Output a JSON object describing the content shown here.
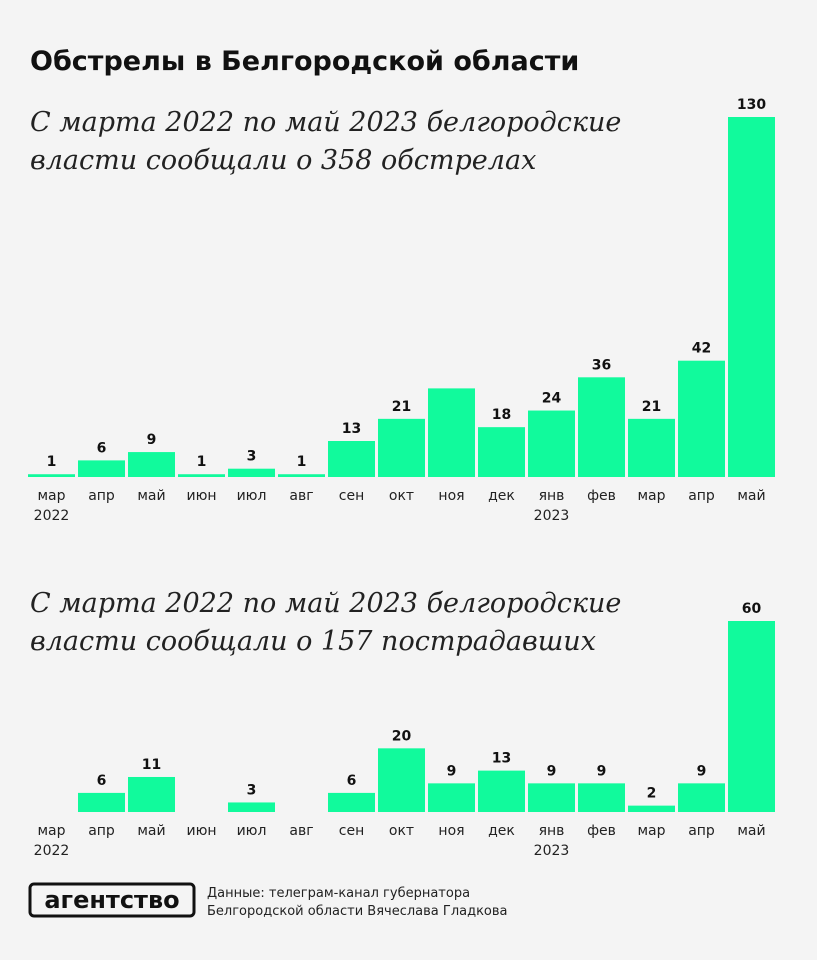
{
  "header": {
    "title": "Обстрелы в Белгородской области"
  },
  "chart_data": [
    {
      "type": "bar",
      "subtitle": [
        "С марта 2022 по май 2023 белгородские",
        "власти сообщали о 358 обстрелах"
      ],
      "categories": [
        "мар",
        "апр",
        "май",
        "июн",
        "июл",
        "авг",
        "сен",
        "окт",
        "ноя",
        "дек",
        "янв",
        "фев",
        "мар",
        "апр",
        "май"
      ],
      "category_years": [
        "2022",
        null,
        null,
        null,
        null,
        null,
        null,
        null,
        null,
        null,
        "2023",
        null,
        null,
        null,
        null
      ],
      "values": [
        1,
        6,
        9,
        1,
        3,
        1,
        13,
        21,
        32,
        18,
        24,
        36,
        21,
        42,
        130
      ],
      "value_labels": [
        "1",
        "6",
        "9",
        "1",
        "3",
        "1",
        "13",
        "21",
        null,
        "18",
        "24",
        "36",
        "21",
        "42",
        "130"
      ],
      "color": "#11fa9c",
      "ylim": [
        0,
        130
      ]
    },
    {
      "type": "bar",
      "subtitle": [
        "С марта 2022 по май 2023 белгородские",
        "власти сообщали о 157 пострадавших"
      ],
      "categories": [
        "мар",
        "апр",
        "май",
        "июн",
        "июл",
        "авг",
        "сен",
        "окт",
        "ноя",
        "дек",
        "янв",
        "фев",
        "мар",
        "апр",
        "май"
      ],
      "category_years": [
        "2022",
        null,
        null,
        null,
        null,
        null,
        null,
        null,
        null,
        null,
        "2023",
        null,
        null,
        null,
        null
      ],
      "values": [
        0,
        6,
        11,
        0,
        3,
        0,
        6,
        20,
        9,
        13,
        9,
        9,
        2,
        9,
        60
      ],
      "value_labels": [
        null,
        "6",
        "11",
        null,
        "3",
        null,
        "6",
        "20",
        "9",
        "13",
        "9",
        "9",
        "2",
        "9",
        "60"
      ],
      "color": "#11fa9c",
      "ylim": [
        0,
        60
      ]
    }
  ],
  "footer": {
    "logo": "агентство",
    "source": [
      "Данные: телеграм-канал губернатора",
      "Белгородской области Вячеслава Гладкова"
    ]
  }
}
